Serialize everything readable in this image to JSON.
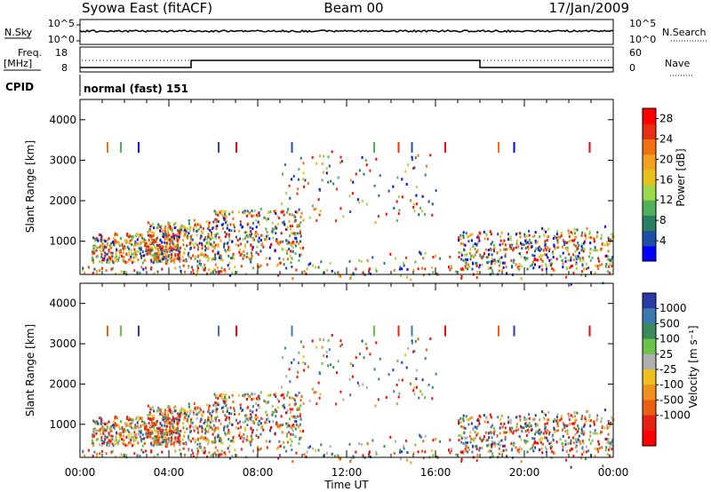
{
  "header": {
    "station": "Syowa East (fitACF)",
    "beam": "Beam 00",
    "date": "17/Jan/2009"
  },
  "strips": {
    "nsky_label": "N.Sky",
    "nsky_ticks": [
      "10^5",
      "10^0"
    ],
    "nsearch_label": "N.Search",
    "nsearch_ticks": [
      "10^5",
      "10^0"
    ],
    "freq_label_line1": "Freq.",
    "freq_label_line2": "[MHz]",
    "freq_ticks": [
      "18",
      "8"
    ],
    "nave_label": "Nave",
    "nave_ticks": [
      "60",
      "0"
    ],
    "cpid_label": "CPID",
    "cpid_value": "normal (fast) 151"
  },
  "colors": {
    "power_scale": [
      "#0000ff",
      "#1f4ea8",
      "#2a7f62",
      "#4fb25a",
      "#9bd94a",
      "#e8c21a",
      "#f5a020",
      "#f07010",
      "#e83010",
      "#ff0000"
    ],
    "velocity_scale": [
      "#2a3aa8",
      "#3a7ab0",
      "#3c8a5a",
      "#6bc44a",
      "#b0b0b0",
      "#f0c020",
      "#f09020",
      "#e86010",
      "#e82010",
      "#ff0000"
    ]
  },
  "chart_data": [
    {
      "type": "heatmap",
      "title": "Power",
      "ylabel": "Slant Range [km]",
      "xlabel": "Time UT",
      "x_ticks": [
        "00:00",
        "04:00",
        "08:00",
        "12:00",
        "16:00",
        "20:00",
        "00:00"
      ],
      "xlim_hours": [
        0,
        24
      ],
      "y_ticks": [
        "1000",
        "2000",
        "3000",
        "4000"
      ],
      "ylim": [
        180,
        4500
      ],
      "colorbar_label": "Power [dB]",
      "colorbar_ticks": [
        "4",
        "8",
        "12",
        "16",
        "20",
        "24",
        "28"
      ],
      "colorbar_range": [
        0,
        30
      ]
    },
    {
      "type": "heatmap",
      "title": "Velocity",
      "ylabel": "Slant Range [km]",
      "xlabel": "Time UT",
      "x_ticks": [
        "00:00",
        "04:00",
        "08:00",
        "12:00",
        "16:00",
        "20:00",
        "00:00"
      ],
      "xlim_hours": [
        0,
        24
      ],
      "y_ticks": [
        "1000",
        "2000",
        "3000",
        "4000"
      ],
      "ylim": [
        180,
        4500
      ],
      "colorbar_label": "Velocity [m s⁻¹]",
      "colorbar_ticks": [
        "1000",
        "500",
        "100",
        "25",
        "-25",
        "-100",
        "-500",
        "-1000"
      ]
    }
  ]
}
